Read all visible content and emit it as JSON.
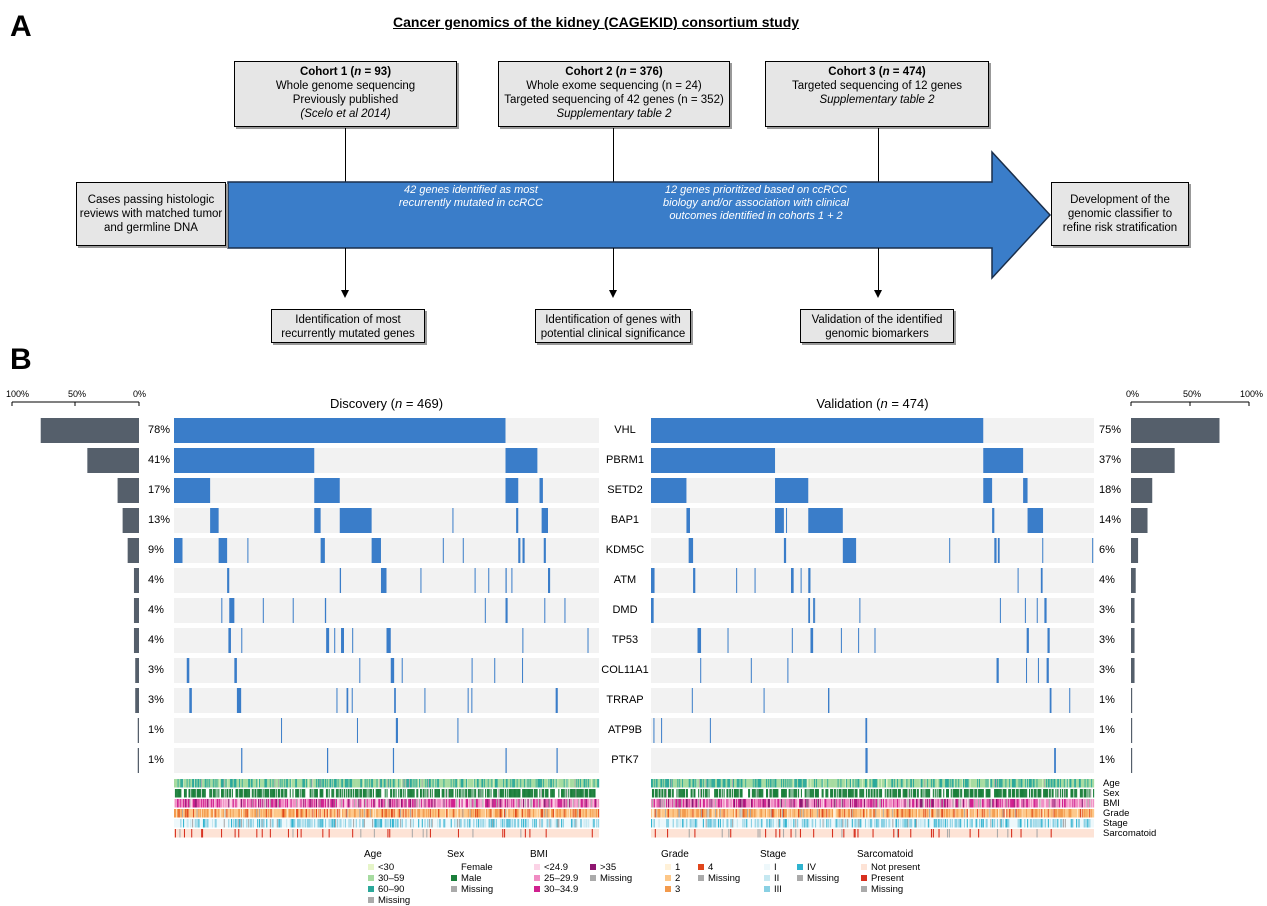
{
  "panelA": {
    "letter": "A",
    "title": "Cancer genomics of the kidney (CAGEKID) consortium study",
    "cohorts": [
      {
        "title_prefix": "Cohort 1 (",
        "n_var": "n",
        "title_suffix": " = 93)",
        "lines": [
          "Whole genome sequencing",
          "Previously published"
        ],
        "note": "(Scelo et al 2014)"
      },
      {
        "title_prefix": "Cohort 2 (",
        "n_var": "n",
        "title_suffix": " = 376)",
        "lines": [
          "Whole exome sequencing (n = 24)",
          "Targeted sequencing of 42 genes (n = 352)"
        ],
        "note": "Supplementary table 2"
      },
      {
        "title_prefix": "Cohort 3 (",
        "n_var": "n",
        "title_suffix": " = 474)",
        "lines": [
          "Targeted sequencing of 12 genes"
        ],
        "note": "Supplementary table 2"
      }
    ],
    "left_box": "Cases passing histologic reviews with matched tumor and germline DNA",
    "right_box": "Development of the genomic classifier to refine risk stratification",
    "arrow_text_1": "42 genes identified as most recurrently mutated in ccRCC",
    "arrow_text_2": "12 genes prioritized based on ccRCC biology and/or association with clinical outcomes identified in cohorts 1 + 2",
    "outcomes": [
      "Identification of most recurrently mutated genes",
      "Identification of genes with potential clinical significance",
      "Validation of the identified genomic biomarkers"
    ],
    "arrow_color": "#3a7dc9"
  },
  "panelB": {
    "letter": "B",
    "discovery_title_prefix": "Discovery (",
    "discovery_title_n": "n",
    "discovery_title_suffix": " = 469)",
    "validation_title_prefix": "Validation (",
    "validation_title_n": "n",
    "validation_title_suffix": " = 474)",
    "axis_left": [
      "100%",
      "50%",
      "0%"
    ],
    "axis_right": [
      "0%",
      "50%",
      "100%"
    ],
    "genes": [
      "VHL",
      "PBRM1",
      "SETD2",
      "BAP1",
      "KDM5C",
      "ATM",
      "DMD",
      "TP53",
      "COL11A1",
      "TRRAP",
      "ATP9B",
      "PTK7"
    ],
    "discovery_pct": [
      "78%",
      "41%",
      "17%",
      "13%",
      "9%",
      "4%",
      "4%",
      "4%",
      "3%",
      "3%",
      "1%",
      "1%"
    ],
    "validation_pct": [
      "75%",
      "37%",
      "18%",
      "14%",
      "6%",
      "4%",
      "3%",
      "3%",
      "3%",
      "1%",
      "1%",
      "1%"
    ],
    "discovery_frac": [
      0.78,
      0.41,
      0.17,
      0.13,
      0.09,
      0.04,
      0.04,
      0.04,
      0.03,
      0.03,
      0.01,
      0.01
    ],
    "validation_frac": [
      0.75,
      0.37,
      0.18,
      0.14,
      0.06,
      0.04,
      0.03,
      0.03,
      0.03,
      0.01,
      0.01,
      0.01
    ],
    "mutation_color": "#3a7dc9",
    "bar_color": "#555f6b",
    "track_labels": [
      "Age",
      "Sex",
      "BMI",
      "Grade",
      "Stage",
      "Sarcomatoid"
    ],
    "legend": {
      "age": {
        "title": "Age",
        "items": [
          {
            "label": "<30",
            "color": "#e6f5c9"
          },
          {
            "label": "30–59",
            "color": "#a6dba0"
          },
          {
            "label": "60–90",
            "color": "#2ba89a"
          },
          {
            "label": "Missing",
            "color": "#aaaaaa"
          }
        ]
      },
      "sex": {
        "title": "Sex",
        "items": [
          {
            "label": "Female",
            "color": "#ffffff"
          },
          {
            "label": "Male",
            "color": "#1b7f3b"
          },
          {
            "label": "Missing",
            "color": "#aaaaaa"
          }
        ]
      },
      "bmi": {
        "title": "BMI",
        "items": [
          {
            "label": "<24.9",
            "color": "#fbd3e6"
          },
          {
            "label": "25–29.9",
            "color": "#f08cc3"
          },
          {
            "label": "30–34.9",
            "color": "#d0208f"
          },
          {
            "label": ">35",
            "color": "#8e1670"
          },
          {
            "label": "Missing",
            "color": "#aaaaaa"
          }
        ]
      },
      "grade": {
        "title": "Grade",
        "items": [
          {
            "label": "1",
            "color": "#fff1d8"
          },
          {
            "label": "2",
            "color": "#fdc788"
          },
          {
            "label": "3",
            "color": "#f39a4c"
          },
          {
            "label": "4",
            "color": "#e0461c"
          },
          {
            "label": "Missing",
            "color": "#aaaaaa"
          }
        ]
      },
      "stage": {
        "title": "Stage",
        "items": [
          {
            "label": "I",
            "color": "#eef8fb"
          },
          {
            "label": "II",
            "color": "#c5e8f1"
          },
          {
            "label": "III",
            "color": "#89d0e3"
          },
          {
            "label": "IV",
            "color": "#2fb3cf"
          },
          {
            "label": "Missing",
            "color": "#aaaaaa"
          }
        ]
      },
      "sarcomatoid": {
        "title": "Sarcomatoid",
        "items": [
          {
            "label": "Not present",
            "color": "#fde3d6"
          },
          {
            "label": "Present",
            "color": "#d7301f"
          },
          {
            "label": "Missing",
            "color": "#aaaaaa"
          }
        ]
      }
    }
  }
}
